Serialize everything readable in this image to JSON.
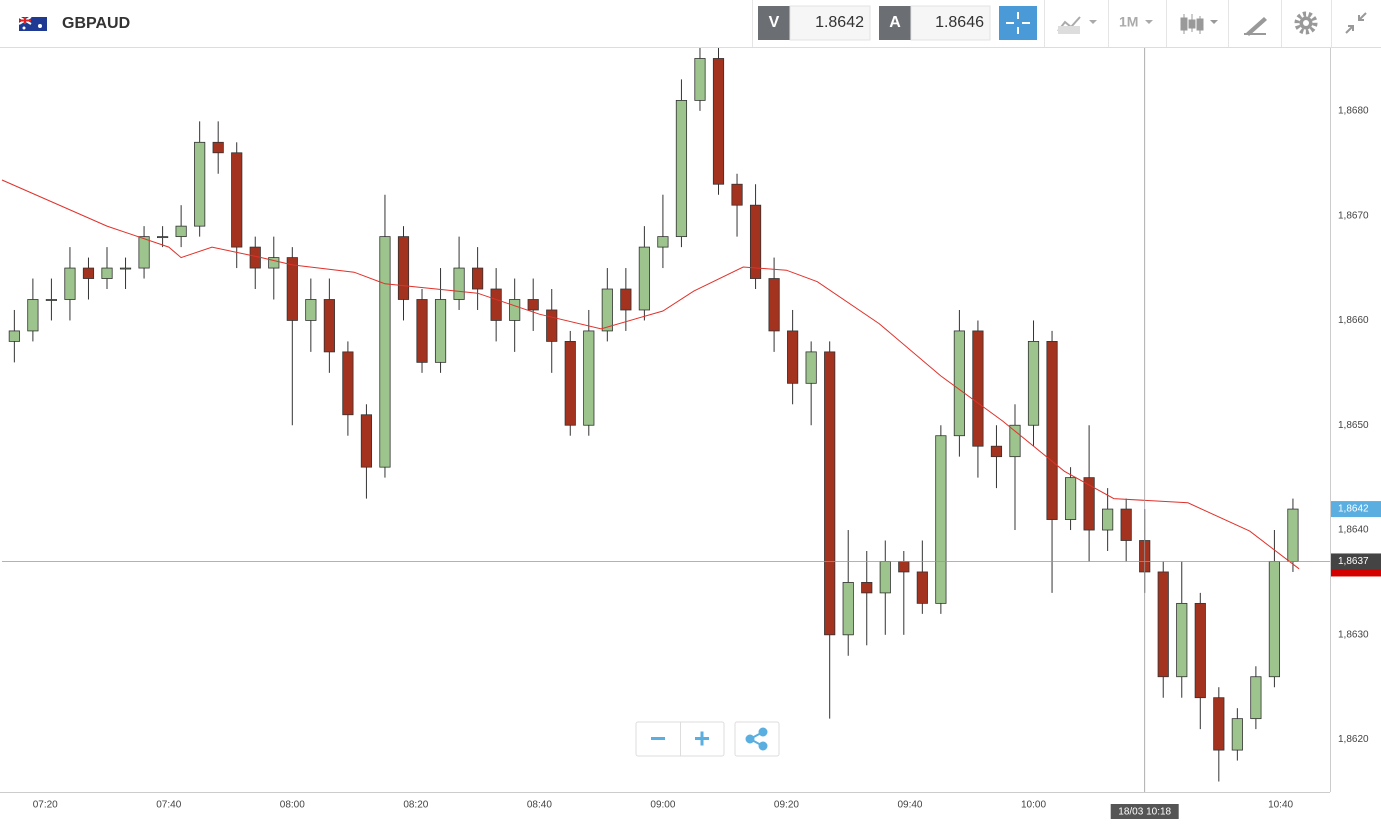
{
  "chart_data": {
    "type": "candlestick",
    "title": "GBPAUD",
    "bid_label": "V",
    "bid": 1.8642,
    "ask_label": "A",
    "ask": 1.8646,
    "timeframe": "1M",
    "x": [
      "07:15",
      "07:18",
      "07:21",
      "07:24",
      "07:27",
      "07:30",
      "07:33",
      "07:36",
      "07:39",
      "07:42",
      "07:45",
      "07:48",
      "07:51",
      "07:54",
      "07:57",
      "08:00",
      "08:03",
      "08:06",
      "08:09",
      "08:12",
      "08:15",
      "08:18",
      "08:21",
      "08:24",
      "08:27",
      "08:30",
      "08:33",
      "08:36",
      "08:39",
      "08:42",
      "08:45",
      "08:48",
      "08:51",
      "08:54",
      "08:57",
      "09:00",
      "09:03",
      "09:06",
      "09:09",
      "09:12",
      "09:15",
      "09:18",
      "09:21",
      "09:24",
      "09:27",
      "09:30",
      "09:33",
      "09:36",
      "09:39",
      "09:42",
      "09:45",
      "09:48",
      "09:51",
      "09:54",
      "09:57",
      "10:00",
      "10:03",
      "10:06",
      "10:09",
      "10:12",
      "10:15",
      "10:18",
      "10:21",
      "10:24",
      "10:27",
      "10:30",
      "10:33",
      "10:36",
      "10:39",
      "10:42"
    ],
    "open": [
      1.8658,
      1.8659,
      1.8662,
      1.8662,
      1.8665,
      1.8664,
      1.8665,
      1.8665,
      1.8668,
      1.8668,
      1.8669,
      1.8677,
      1.8676,
      1.8667,
      1.8665,
      1.8666,
      1.866,
      1.8662,
      1.8657,
      1.8651,
      1.8646,
      1.8668,
      1.8662,
      1.8656,
      1.8662,
      1.8665,
      1.8663,
      1.866,
      1.8662,
      1.8661,
      1.8658,
      1.865,
      1.8659,
      1.8663,
      1.8661,
      1.8667,
      1.8668,
      1.8681,
      1.8685,
      1.8673,
      1.8671,
      1.8664,
      1.8659,
      1.8654,
      1.8657,
      1.863,
      1.8635,
      1.8634,
      1.8637,
      1.8636,
      1.8633,
      1.8649,
      1.8659,
      1.8648,
      1.8647,
      1.865,
      1.8658,
      1.8641,
      1.8645,
      1.864,
      1.8642,
      1.8639,
      1.8636,
      1.8626,
      1.8633,
      1.8624,
      1.8619,
      1.8622,
      1.8626,
      1.8637
    ],
    "high": [
      1.8661,
      1.8664,
      1.8664,
      1.8667,
      1.8666,
      1.8667,
      1.8666,
      1.8669,
      1.8669,
      1.8671,
      1.8679,
      1.8679,
      1.8677,
      1.8668,
      1.8668,
      1.8667,
      1.8664,
      1.8664,
      1.8658,
      1.8652,
      1.8672,
      1.8669,
      1.8663,
      1.8665,
      1.8668,
      1.8667,
      1.8665,
      1.8664,
      1.8664,
      1.8663,
      1.8659,
      1.8661,
      1.8665,
      1.8665,
      1.8669,
      1.8672,
      1.8683,
      1.8686,
      1.8686,
      1.8674,
      1.8673,
      1.8666,
      1.8661,
      1.8658,
      1.8658,
      1.864,
      1.8638,
      1.8639,
      1.8638,
      1.8639,
      1.865,
      1.8661,
      1.866,
      1.865,
      1.8652,
      1.866,
      1.8659,
      1.8646,
      1.865,
      1.8644,
      1.8643,
      1.8642,
      1.8637,
      1.8637,
      1.8634,
      1.8625,
      1.8623,
      1.8627,
      1.864,
      1.8643
    ],
    "low": [
      1.8656,
      1.8658,
      1.866,
      1.866,
      1.8662,
      1.8663,
      1.8663,
      1.8664,
      1.8667,
      1.8667,
      1.8668,
      1.8674,
      1.8665,
      1.8663,
      1.8662,
      1.865,
      1.8657,
      1.8655,
      1.8649,
      1.8643,
      1.8645,
      1.866,
      1.8655,
      1.8655,
      1.8661,
      1.8661,
      1.8658,
      1.8657,
      1.8659,
      1.8655,
      1.8649,
      1.8649,
      1.8658,
      1.8659,
      1.866,
      1.8665,
      1.8667,
      1.868,
      1.8672,
      1.8668,
      1.8663,
      1.8657,
      1.8652,
      1.865,
      1.8622,
      1.8628,
      1.8629,
      1.863,
      1.863,
      1.8632,
      1.8632,
      1.8647,
      1.8645,
      1.8644,
      1.864,
      1.8648,
      1.8634,
      1.864,
      1.8637,
      1.8638,
      1.8637,
      1.8634,
      1.8624,
      1.8624,
      1.8621,
      1.8616,
      1.8618,
      1.8621,
      1.8625,
      1.8636
    ],
    "close": [
      1.8659,
      1.8662,
      1.8662,
      1.8665,
      1.8664,
      1.8665,
      1.8665,
      1.8668,
      1.8668,
      1.8669,
      1.8677,
      1.8676,
      1.8667,
      1.8665,
      1.8666,
      1.866,
      1.8662,
      1.8657,
      1.8651,
      1.8646,
      1.8668,
      1.8662,
      1.8656,
      1.8662,
      1.8665,
      1.8663,
      1.866,
      1.8662,
      1.8661,
      1.8658,
      1.865,
      1.8659,
      1.8663,
      1.8661,
      1.8667,
      1.8668,
      1.8681,
      1.8685,
      1.8673,
      1.8671,
      1.8664,
      1.8659,
      1.8654,
      1.8657,
      1.863,
      1.8635,
      1.8634,
      1.8637,
      1.8636,
      1.8633,
      1.8649,
      1.8659,
      1.8648,
      1.8647,
      1.865,
      1.8658,
      1.8641,
      1.8645,
      1.864,
      1.8642,
      1.8639,
      1.8636,
      1.8626,
      1.8633,
      1.8624,
      1.8619,
      1.8622,
      1.8626,
      1.8637,
      1.8642
    ],
    "up_color": "#9cc48c",
    "down_color": "#a3321f",
    "moving_average": {
      "color": "#e0312b",
      "x": [
        "07:13",
        "07:30",
        "07:40",
        "07:42",
        "07:47",
        "07:55",
        "08:00",
        "08:10",
        "08:15",
        "08:30",
        "08:40",
        "08:50",
        "09:00",
        "09:05",
        "09:13",
        "09:20",
        "09:25",
        "09:35",
        "09:45",
        "09:55",
        "10:05",
        "10:13",
        "10:25",
        "10:35",
        "10:43"
      ],
      "values": [
        1.86734,
        1.8669,
        1.8667,
        1.8666,
        1.8667,
        1.8666,
        1.86653,
        1.86646,
        1.86635,
        1.86626,
        1.86606,
        1.86592,
        1.86609,
        1.86628,
        1.86651,
        1.86648,
        1.86637,
        1.86597,
        1.86547,
        1.86504,
        1.86456,
        1.8643,
        1.86426,
        1.86399,
        1.86363
      ]
    },
    "xlim": [
      "07:13",
      "10:48"
    ],
    "xticks": [
      "07:20",
      "07:40",
      "08:00",
      "08:20",
      "08:40",
      "09:00",
      "09:20",
      "09:40",
      "10:00",
      "10:40"
    ],
    "ylim": [
      1.8615,
      1.8686
    ],
    "yticks": [
      {
        "value": 1.862,
        "label": "1,8620"
      },
      {
        "value": 1.863,
        "label": "1,8630"
      },
      {
        "value": 1.864,
        "label": "1,8640"
      },
      {
        "value": 1.865,
        "label": "1,8650"
      },
      {
        "value": 1.866,
        "label": "1,8660"
      },
      {
        "value": 1.867,
        "label": "1,8670"
      },
      {
        "value": 1.868,
        "label": "1,8680"
      }
    ],
    "grid": true,
    "last_price": {
      "value": 1.8642,
      "label": "1,8642"
    },
    "current_price": {
      "value": 1.8637,
      "label": "1,8637"
    },
    "crosshair": {
      "x": "10:18",
      "label": "18/03 10:18"
    }
  }
}
